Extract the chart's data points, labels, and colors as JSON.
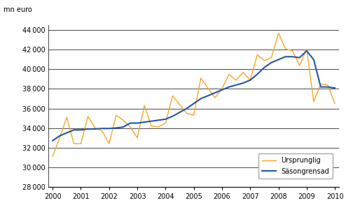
{
  "title": "",
  "ylabel": "mn euro",
  "ylim": [
    28000,
    44500
  ],
  "yticks": [
    28000,
    30000,
    32000,
    34000,
    36000,
    38000,
    40000,
    42000,
    44000
  ],
  "xlabel": "",
  "background_color": "#ffffff",
  "plot_bg_color": "#ffffff",
  "ursprunglig_color": "#F5A623",
  "sasongrensad_color": "#2255AA",
  "ursprunglig_label": "Ursprunglig",
  "sasongrensad_label": "Säsongrensad",
  "x_quarters": [
    0.0,
    0.25,
    0.5,
    0.75,
    1.0,
    1.25,
    1.5,
    1.75,
    2.0,
    2.25,
    2.5,
    2.75,
    3.0,
    3.25,
    3.5,
    3.75,
    4.0,
    4.25,
    4.5,
    4.75,
    5.0,
    5.25,
    5.5,
    5.75,
    6.0,
    6.25,
    6.5,
    6.75,
    7.0,
    7.25,
    7.5,
    7.75,
    8.0,
    8.25,
    8.5,
    8.75,
    9.0,
    9.25,
    9.5,
    9.75,
    10.0
  ],
  "ursprunglig": [
    31100,
    33000,
    35100,
    32400,
    32400,
    35200,
    34000,
    33700,
    32400,
    35300,
    34800,
    34100,
    33000,
    36300,
    34200,
    34100,
    34500,
    37300,
    36400,
    35500,
    35300,
    39100,
    38100,
    37100,
    38000,
    39500,
    38900,
    39700,
    38900,
    41500,
    40900,
    41200,
    43700,
    42100,
    41900,
    40400,
    42100,
    36700,
    38500,
    38400,
    36500
  ],
  "sasongrensad": [
    32700,
    33200,
    33500,
    33800,
    33800,
    33900,
    33900,
    33950,
    33950,
    34000,
    34100,
    34500,
    34500,
    34600,
    34700,
    34800,
    34900,
    35200,
    35600,
    36000,
    36500,
    37000,
    37300,
    37600,
    37900,
    38200,
    38400,
    38600,
    38900,
    39500,
    40200,
    40700,
    41000,
    41300,
    41300,
    41200,
    41900,
    41000,
    38200,
    38200,
    38100
  ],
  "xtick_positions": [
    0,
    1,
    2,
    3,
    4,
    5,
    6,
    7,
    8,
    9,
    10
  ],
  "xtick_labels": [
    "2000",
    "2001",
    "2002",
    "2003",
    "2004",
    "2005",
    "2006",
    "2007",
    "2008",
    "2009",
    "2010"
  ]
}
